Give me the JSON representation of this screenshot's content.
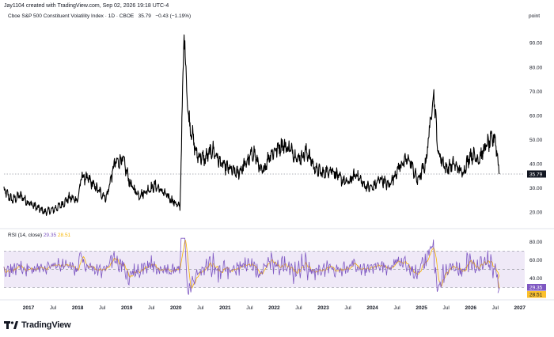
{
  "credit": "Jay1104 created with TradingView.com, Sep 02, 2026 19:18 UTC-4",
  "legend": {
    "symbol": "Cboe S&P 500 Constituent Volatility Index · 1D · CBOE",
    "last": "35.79",
    "change": "−0.43 (−1.19%)"
  },
  "unit_label": "point",
  "rsi_legend": {
    "label": "RSI (14, close)",
    "rsi_value": "29.35",
    "ma_value": "28.51"
  },
  "logo_text": "TradingView",
  "colors": {
    "price_line": "#000000",
    "rsi_line": "#7e57c2",
    "rsi_ma": "#f7b500",
    "rsi_band": "#ede7f6",
    "price_tag": "#131722",
    "rsi_tag": "#7e57c2",
    "ma_tag": "#fbc02d"
  },
  "chart_data": [
    {
      "type": "line",
      "name": "price",
      "ylim": [
        14.5,
        98
      ],
      "y_ticks": [
        20,
        30,
        40,
        50,
        60,
        70,
        80,
        90
      ],
      "y_tick_labels": [
        "20.00",
        "30.00",
        "40.00",
        "50.00",
        "60.00",
        "70.00",
        "80.00",
        "90.00"
      ],
      "x_ticks": [
        "2017",
        "Jul",
        "2018",
        "Jul",
        "2019",
        "Jul",
        "2020",
        "Jul",
        "2021",
        "Jul",
        "2022",
        "Jul",
        "2023",
        "Jul",
        "2024",
        "Jul",
        "2025",
        "Jul",
        "2026",
        "Jul",
        "2027"
      ],
      "current_value": "35.79",
      "series": [
        {
          "x": [
            "2016-07",
            "2016-09",
            "2016-11",
            "2017-01",
            "2017-03",
            "2017-05",
            "2017-07",
            "2017-09",
            "2017-11",
            "2018-01",
            "2018-02",
            "2018-04",
            "2018-06",
            "2018-08",
            "2018-10",
            "2018-12",
            "2019-02",
            "2019-04",
            "2019-06",
            "2019-08",
            "2019-10",
            "2019-12",
            "2020-02",
            "2020-03",
            "2020-04",
            "2020-06",
            "2020-08",
            "2020-10",
            "2020-12",
            "2021-02",
            "2021-04",
            "2021-06",
            "2021-08",
            "2021-10",
            "2021-12",
            "2022-03",
            "2022-05",
            "2022-07",
            "2022-09",
            "2022-11",
            "2023-01",
            "2023-03",
            "2023-05",
            "2023-07",
            "2023-09",
            "2023-11",
            "2024-01",
            "2024-03",
            "2024-05",
            "2024-08",
            "2024-10",
            "2024-12",
            "2025-02",
            "2025-04",
            "2025-05",
            "2025-07",
            "2025-09",
            "2025-11",
            "2026-01",
            "2026-03",
            "2026-05",
            "2026-07",
            "2026-08"
          ],
          "values": [
            29,
            25,
            27,
            24,
            22,
            20,
            21,
            23,
            26,
            25,
            35,
            33,
            29,
            26,
            40,
            42,
            31,
            27,
            29,
            31,
            28,
            25,
            22,
            95,
            60,
            44,
            42,
            46,
            40,
            38,
            36,
            40,
            45,
            36,
            44,
            48,
            46,
            42,
            45,
            38,
            36,
            38,
            34,
            32,
            36,
            31,
            30,
            34,
            31,
            40,
            42,
            33,
            40,
            70,
            45,
            38,
            40,
            36,
            44,
            42,
            48,
            51,
            35.79
          ]
        }
      ]
    },
    {
      "type": "line",
      "name": "rsi",
      "ylim": [
        20,
        85
      ],
      "y_ticks": [
        40,
        60,
        80
      ],
      "y_tick_labels": [
        "40.00",
        "60.00",
        "80.00"
      ],
      "band": [
        30,
        70
      ],
      "series": [
        {
          "name": "RSI (14, close)",
          "current_value": "29.35"
        },
        {
          "name": "MA",
          "current_value": "28.51"
        }
      ]
    }
  ]
}
